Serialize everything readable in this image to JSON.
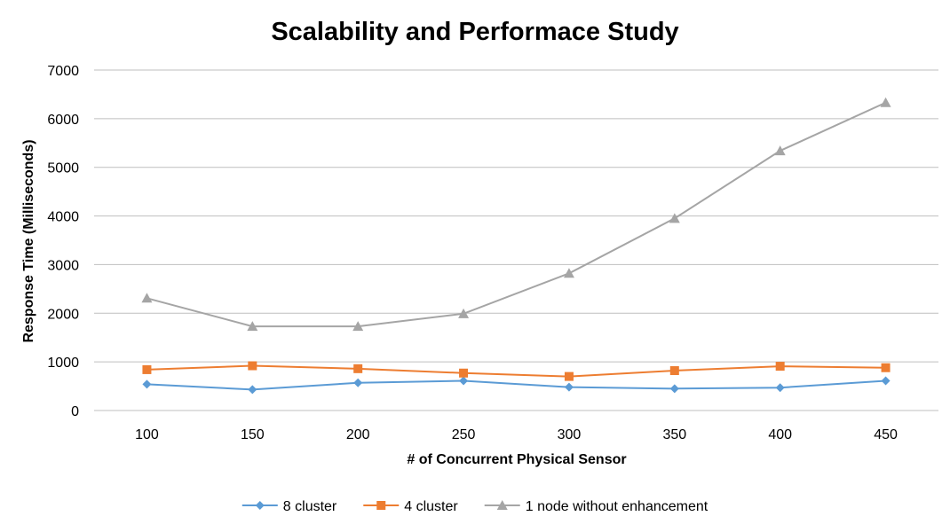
{
  "chart_data": {
    "type": "line",
    "title": "Scalability and Performace  Study",
    "xlabel": "# of Concurrent Physical Sensor",
    "ylabel": "Response Time (Milliseconds)",
    "categories": [
      "100",
      "150",
      "200",
      "250",
      "300",
      "350",
      "400",
      "450"
    ],
    "ylim": [
      0,
      7000
    ],
    "yticks": [
      "0",
      "1000",
      "2000",
      "3000",
      "4000",
      "5000",
      "6000",
      "7000"
    ],
    "grid": true,
    "legend_position": "bottom",
    "series": [
      {
        "name": "8 cluster",
        "color": "#5B9BD5",
        "marker": "diamond",
        "values": [
          540,
          430,
          570,
          610,
          480,
          450,
          470,
          610
        ]
      },
      {
        "name": "4 cluster",
        "color": "#ED7D31",
        "marker": "square",
        "values": [
          840,
          920,
          860,
          770,
          700,
          820,
          910,
          880
        ]
      },
      {
        "name": "1 node without enhancement",
        "color": "#A5A5A5",
        "marker": "triangle",
        "values": [
          2310,
          1730,
          1730,
          1990,
          2820,
          3950,
          5340,
          6330
        ]
      }
    ]
  }
}
